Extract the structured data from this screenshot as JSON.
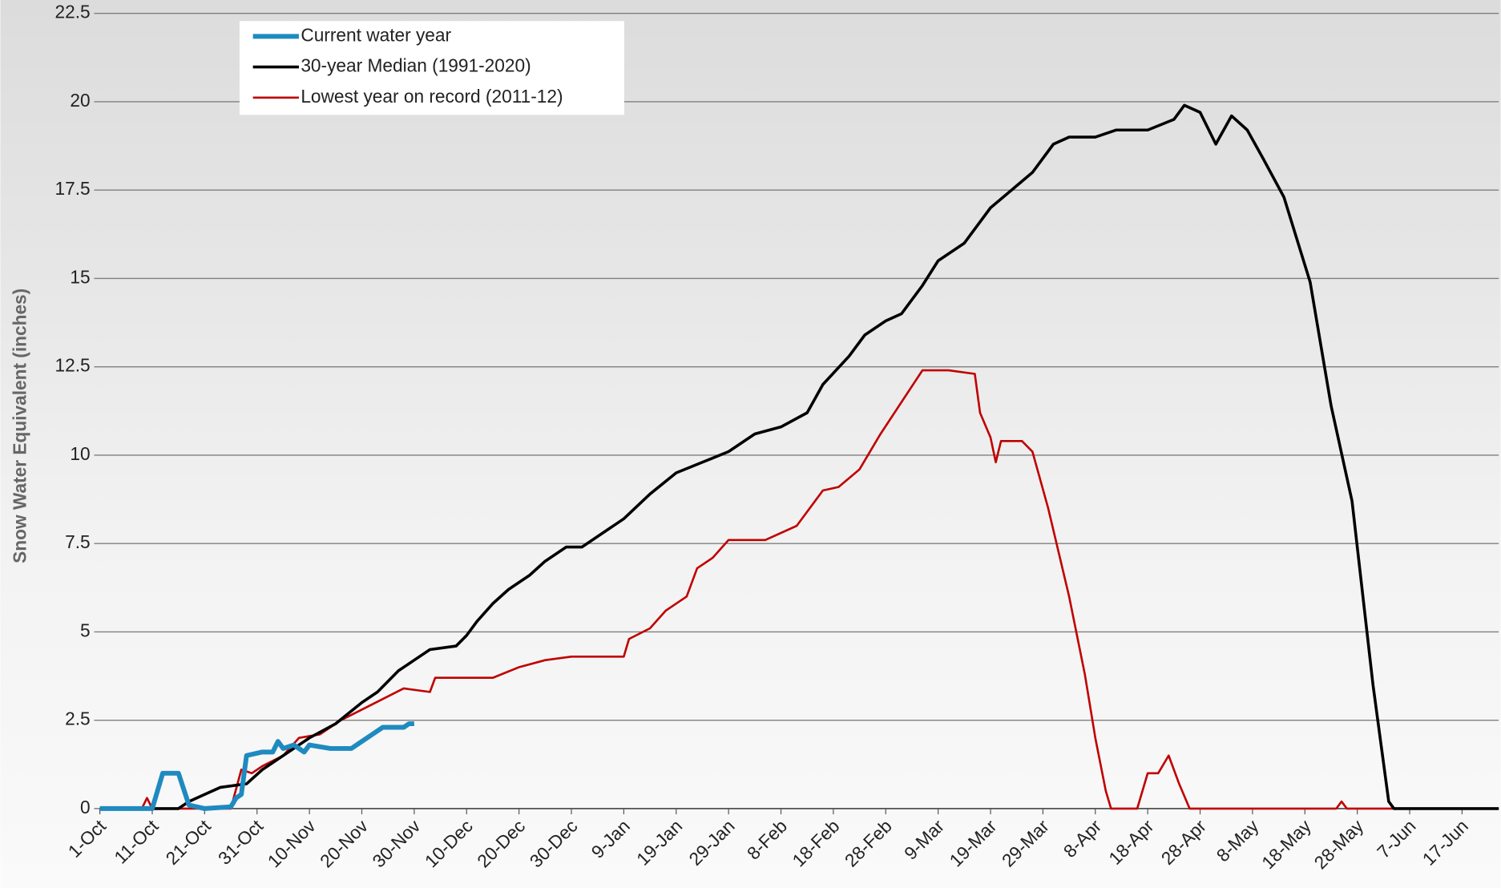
{
  "chart_data": {
    "type": "line",
    "y_label": "Snow Water Equivalent (inches)",
    "xlim": [
      0,
      267
    ],
    "xticks": [
      {
        "value": 0,
        "label": "1-Oct"
      },
      {
        "value": 10,
        "label": "11-Oct"
      },
      {
        "value": 20,
        "label": "21-Oct"
      },
      {
        "value": 30,
        "label": "31-Oct"
      },
      {
        "value": 40,
        "label": "10-Nov"
      },
      {
        "value": 50,
        "label": "20-Nov"
      },
      {
        "value": 60,
        "label": "30-Nov"
      },
      {
        "value": 70,
        "label": "10-Dec"
      },
      {
        "value": 80,
        "label": "20-Dec"
      },
      {
        "value": 90,
        "label": "30-Dec"
      },
      {
        "value": 100,
        "label": "9-Jan"
      },
      {
        "value": 110,
        "label": "19-Jan"
      },
      {
        "value": 120,
        "label": "29-Jan"
      },
      {
        "value": 130,
        "label": "8-Feb"
      },
      {
        "value": 140,
        "label": "18-Feb"
      },
      {
        "value": 150,
        "label": "28-Feb"
      },
      {
        "value": 160,
        "label": "9-Mar"
      },
      {
        "value": 170,
        "label": "19-Mar"
      },
      {
        "value": 180,
        "label": "29-Mar"
      },
      {
        "value": 190,
        "label": "8-Apr"
      },
      {
        "value": 200,
        "label": "18-Apr"
      },
      {
        "value": 210,
        "label": "28-Apr"
      },
      {
        "value": 220,
        "label": "8-May"
      },
      {
        "value": 230,
        "label": "18-May"
      },
      {
        "value": 240,
        "label": "28-May"
      },
      {
        "value": 250,
        "label": "7-Jun"
      },
      {
        "value": 260,
        "label": "17-Jun"
      }
    ],
    "ylim": [
      0,
      22.5
    ],
    "yticks": [
      0,
      2.5,
      5,
      7.5,
      10,
      12.5,
      15,
      17.5,
      20,
      22.5
    ],
    "grid": true,
    "legend": "top-left",
    "series": [
      {
        "name": "Current water year",
        "color": "#1f8ac0",
        "width": 5,
        "x": [
          0,
          10,
          12,
          15,
          17,
          20,
          25,
          26,
          27,
          28,
          31,
          33,
          34,
          35,
          37,
          39,
          40,
          44,
          48,
          50,
          52,
          54,
          58,
          59,
          60
        ],
        "values": [
          0,
          0,
          1.0,
          1.0,
          0.1,
          0,
          0.05,
          0.3,
          0.4,
          1.5,
          1.6,
          1.6,
          1.9,
          1.7,
          1.8,
          1.6,
          1.8,
          1.7,
          1.7,
          1.9,
          2.1,
          2.3,
          2.3,
          2.4,
          2.4
        ]
      },
      {
        "name": "30-year Median (1991-2020)",
        "color": "#000000",
        "width": 3,
        "x": [
          0,
          15,
          17,
          20,
          23,
          28,
          31,
          35,
          40,
          45,
          50,
          53,
          57,
          60,
          63,
          68,
          70,
          72,
          75,
          78,
          82,
          85,
          89,
          92,
          95,
          100,
          105,
          110,
          115,
          120,
          125,
          130,
          135,
          138,
          143,
          146,
          150,
          153,
          157,
          160,
          165,
          170,
          174,
          178,
          182,
          185,
          190,
          194,
          200,
          205,
          207,
          210,
          213,
          216,
          219,
          222,
          226,
          231,
          235,
          239,
          243,
          246,
          247,
          267
        ],
        "values": [
          0,
          0,
          0.2,
          0.4,
          0.6,
          0.7,
          1.1,
          1.5,
          2.0,
          2.4,
          3.0,
          3.3,
          3.9,
          4.2,
          4.5,
          4.6,
          4.9,
          5.3,
          5.8,
          6.2,
          6.6,
          7.0,
          7.4,
          7.4,
          7.7,
          8.2,
          8.9,
          9.5,
          9.8,
          10.1,
          10.6,
          10.8,
          11.2,
          12.0,
          12.8,
          13.4,
          13.8,
          14.0,
          14.8,
          15.5,
          16.0,
          17.0,
          17.5,
          18.0,
          18.8,
          19.0,
          19.0,
          19.2,
          19.2,
          19.5,
          19.9,
          19.7,
          18.8,
          19.6,
          19.2,
          18.4,
          17.3,
          14.9,
          11.4,
          8.7,
          3.5,
          0.2,
          0,
          0
        ]
      },
      {
        "name": "Lowest year on record (2011-12)",
        "color": "#c00000",
        "width": 2.2,
        "x": [
          0,
          8,
          9,
          10,
          25,
          27,
          29,
          31,
          35,
          38,
          42,
          46,
          50,
          54,
          58,
          63,
          64,
          75,
          80,
          85,
          90,
          100,
          101,
          105,
          108,
          112,
          114,
          117,
          120,
          127,
          133,
          138,
          141,
          145,
          149,
          153,
          157,
          162,
          167,
          168,
          170,
          171,
          172,
          176,
          178,
          181,
          185,
          188,
          190,
          192,
          193,
          198,
          200,
          202,
          204,
          206,
          208,
          236,
          237,
          238,
          256
        ],
        "values": [
          0,
          0,
          0.3,
          0,
          0,
          1.1,
          1.0,
          1.2,
          1.5,
          2.0,
          2.1,
          2.5,
          2.8,
          3.1,
          3.4,
          3.3,
          3.7,
          3.7,
          4.0,
          4.2,
          4.3,
          4.3,
          4.8,
          5.1,
          5.6,
          6.0,
          6.8,
          7.1,
          7.6,
          7.6,
          8.0,
          9.0,
          9.1,
          9.6,
          10.6,
          11.5,
          12.4,
          12.4,
          12.3,
          11.2,
          10.5,
          9.8,
          10.4,
          10.4,
          10.1,
          8.5,
          6.0,
          3.8,
          2.0,
          0.5,
          0,
          0,
          1.0,
          1.0,
          1.5,
          0.7,
          0,
          0,
          0.2,
          0,
          0
        ]
      }
    ]
  }
}
